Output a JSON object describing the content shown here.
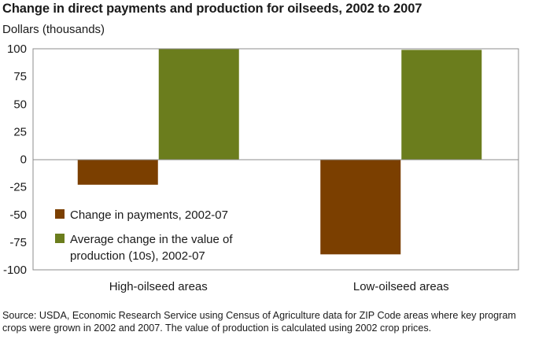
{
  "header": {
    "title": "Change in direct payments and production for oilseeds, 2002 to 2007",
    "y_unit": "Dollars (thousands)"
  },
  "chart_data": {
    "type": "bar",
    "title": "Change in direct payments and production for oilseeds, 2002 to 2007",
    "ylabel": "Dollars (thousands)",
    "categories": [
      "High-oilseed areas",
      "Low-oilseed areas"
    ],
    "series": [
      {
        "name": "Change in payments, 2002-07",
        "values": [
          -23,
          -86
        ],
        "color": "#7b3f00"
      },
      {
        "name_lines": [
          "Average change in the value of",
          "production (10s), 2002-07"
        ],
        "values": [
          100,
          99
        ],
        "color": "#6b7d1d"
      }
    ],
    "ylim": [
      -100,
      100
    ],
    "yticks": [
      "100",
      "75",
      "50",
      "25",
      "0",
      "-25",
      "-50",
      "-75",
      "-100"
    ],
    "ytick_values": [
      100,
      75,
      50,
      25,
      0,
      -25,
      -50,
      -75,
      -100
    ],
    "grid": false,
    "legend_position": "bottom-left-inside"
  },
  "footer": {
    "source": "Source: USDA, Economic Research Service using Census of Agriculture data for ZIP Code areas where key program crops were grown in 2002 and 2007. The value of production is calculated using 2002 crop prices."
  }
}
